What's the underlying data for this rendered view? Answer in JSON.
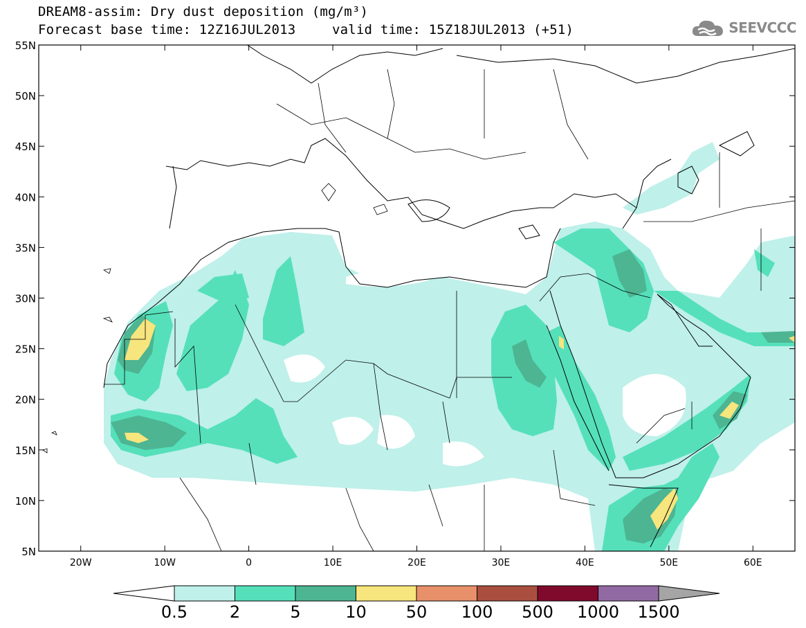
{
  "header": {
    "title_line1": "DREAM8-assim: Dry dust deposition (mg/m³)",
    "forecast_base": "Forecast base time: 12Z16JUL2013",
    "valid_time": "valid time: 15Z18JUL2013 (+51)"
  },
  "logo": {
    "text": "SEEVCCC",
    "icon": "cloud-logo-icon"
  },
  "map": {
    "projection": "lat-lon",
    "lon_range": [
      -25,
      65
    ],
    "lat_range": [
      5,
      55
    ],
    "lat_ticks": [
      "55N",
      "50N",
      "45N",
      "40N",
      "35N",
      "30N",
      "25N",
      "20N",
      "15N",
      "10N",
      "5N"
    ],
    "lon_ticks": [
      "20W",
      "10W",
      "0",
      "10E",
      "20E",
      "30E",
      "40E",
      "50E",
      "60E"
    ]
  },
  "legend": {
    "labels": [
      "0.5",
      "2",
      "5",
      "10",
      "50",
      "100",
      "500",
      "1000",
      "1500"
    ],
    "colors": [
      "#ffffff",
      "#bff0ea",
      "#55e0ba",
      "#4db592",
      "#f7e57d",
      "#e8906a",
      "#aa4f3f",
      "#7f0a2c",
      "#926aa3",
      "#a5a5a5"
    ]
  }
}
